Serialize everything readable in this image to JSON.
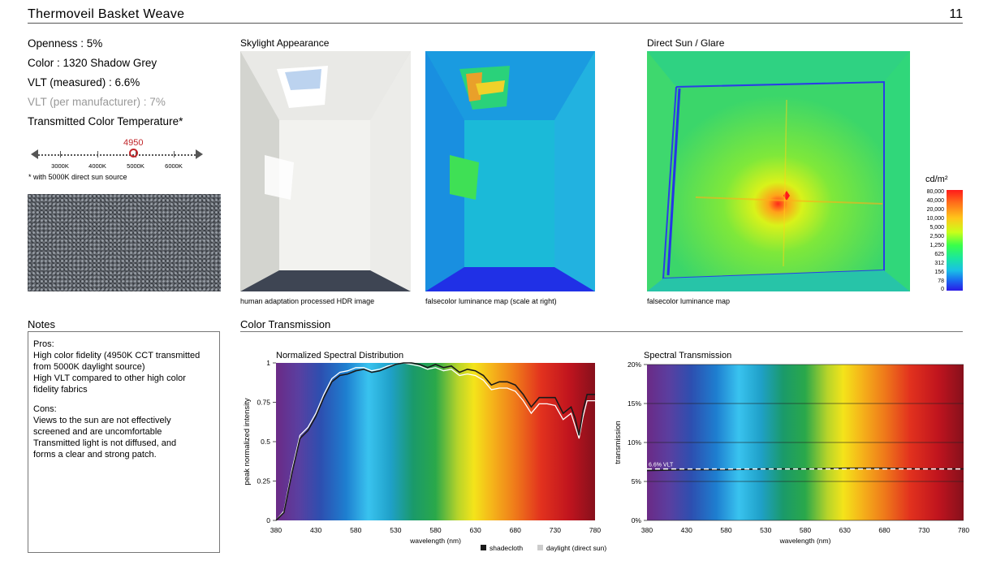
{
  "header": {
    "title": "Thermoveil Basket Weave",
    "page": "11"
  },
  "properties": {
    "openness": "Openness : 5%",
    "color": "Color : 1320 Shadow Grey",
    "vlt_measured": "VLT (measured) : 6.6%",
    "vlt_manufacturer": "VLT (per manufacturer) : 7%",
    "cct_title": "Transmitted Color Temperature*",
    "cct_value": "4950",
    "cct_ticks": [
      "3000K",
      "4000K",
      "5000K",
      "6000K"
    ],
    "footnote": "* with 5000K direct sun source"
  },
  "skylight": {
    "title": "Skylight Appearance",
    "caption_hdr": "human adaptation processed HDR image",
    "caption_false": "falsecolor luminance map (scale at right)"
  },
  "directsun": {
    "title": "Direct Sun / Glare",
    "caption": "falsecolor luminance map"
  },
  "luminance_legend": {
    "unit": "cd/m²",
    "labels": [
      "80,000",
      "40,000",
      "20,000",
      "10,000",
      "5,000",
      "2,500",
      "1,250",
      "625",
      "312",
      "156",
      "78",
      "0"
    ]
  },
  "notes": {
    "title": "Notes",
    "pros_label": "Pros:",
    "pros": [
      "High color fidelity (4950K CCT transmitted",
      "from 5000K daylight source)",
      "High VLT compared to other high color",
      "fidelity fabrics"
    ],
    "cons_label": "Cons:",
    "cons": [
      "Views to the sun are not effectively",
      "screened and are uncomfortable",
      "Transmitted light is not diffused, and",
      "forms a clear and strong patch."
    ]
  },
  "color_transmission": {
    "title": "Color Transmission"
  },
  "chart_data": [
    {
      "type": "line",
      "title": "Normalized Spectral Distribution",
      "xlabel": "wavelength (nm)",
      "ylabel": "peak normalized intensity",
      "x_ticks": [
        "380",
        "430",
        "580",
        "530",
        "580",
        "630",
        "680",
        "730",
        "780"
      ],
      "y_ticks": [
        "0",
        "0.25",
        "0.5",
        "0.75",
        "1"
      ],
      "xlim": [
        380,
        780
      ],
      "ylim": [
        0,
        1
      ],
      "legend": [
        "shadecloth",
        "daylight (direct sun)"
      ],
      "legend_position": "bottom-right",
      "series": [
        {
          "name": "shadecloth",
          "color": "#1a1a1a",
          "x": [
            380,
            390,
            400,
            410,
            420,
            430,
            440,
            450,
            460,
            470,
            480,
            490,
            500,
            510,
            520,
            530,
            540,
            550,
            560,
            570,
            580,
            590,
            600,
            610,
            620,
            630,
            640,
            650,
            660,
            670,
            680,
            690,
            700,
            710,
            720,
            730,
            740,
            750,
            755,
            760,
            765,
            770,
            780
          ],
          "y": [
            0.0,
            0.05,
            0.3,
            0.52,
            0.57,
            0.66,
            0.78,
            0.88,
            0.92,
            0.93,
            0.95,
            0.96,
            0.94,
            0.95,
            0.97,
            0.99,
            1.0,
            1.0,
            0.99,
            0.97,
            0.99,
            0.97,
            0.98,
            0.94,
            0.96,
            0.95,
            0.92,
            0.86,
            0.88,
            0.88,
            0.86,
            0.8,
            0.72,
            0.78,
            0.78,
            0.78,
            0.68,
            0.72,
            0.65,
            0.54,
            0.7,
            0.8,
            0.8
          ]
        },
        {
          "name": "daylight (direct sun)",
          "color": "#ffffff",
          "x": [
            380,
            390,
            400,
            410,
            420,
            430,
            440,
            450,
            460,
            470,
            480,
            490,
            500,
            510,
            520,
            530,
            540,
            550,
            560,
            570,
            580,
            590,
            600,
            610,
            620,
            630,
            640,
            650,
            660,
            670,
            680,
            690,
            700,
            710,
            720,
            730,
            740,
            750,
            755,
            760,
            765,
            770,
            780
          ],
          "y": [
            0.0,
            0.06,
            0.32,
            0.54,
            0.59,
            0.68,
            0.8,
            0.9,
            0.94,
            0.95,
            0.97,
            0.97,
            0.95,
            0.96,
            0.98,
            0.99,
            1.0,
            0.99,
            0.98,
            0.96,
            0.97,
            0.95,
            0.96,
            0.92,
            0.93,
            0.92,
            0.89,
            0.83,
            0.84,
            0.84,
            0.82,
            0.76,
            0.68,
            0.74,
            0.74,
            0.73,
            0.64,
            0.68,
            0.6,
            0.52,
            0.66,
            0.76,
            0.76
          ]
        }
      ]
    },
    {
      "type": "line",
      "title": "Spectral Transmission",
      "xlabel": "wavelength (nm)",
      "ylabel": "transmission",
      "x_ticks": [
        "380",
        "430",
        "580",
        "530",
        "580",
        "630",
        "680",
        "730",
        "780"
      ],
      "y_ticks": [
        "0%",
        "5%",
        "10%",
        "15%",
        "20%"
      ],
      "xlim": [
        380,
        780
      ],
      "ylim": [
        0,
        20
      ],
      "series": [
        {
          "color": "#1a1a1a",
          "x": [
            380,
            430,
            480,
            530,
            580,
            630,
            680,
            730,
            780
          ],
          "y": [
            6.4,
            6.5,
            6.5,
            6.6,
            6.6,
            6.7,
            6.7,
            6.6,
            6.6
          ]
        }
      ],
      "reference_line": {
        "value": 6.6,
        "label": "6.6% VLT"
      }
    }
  ]
}
